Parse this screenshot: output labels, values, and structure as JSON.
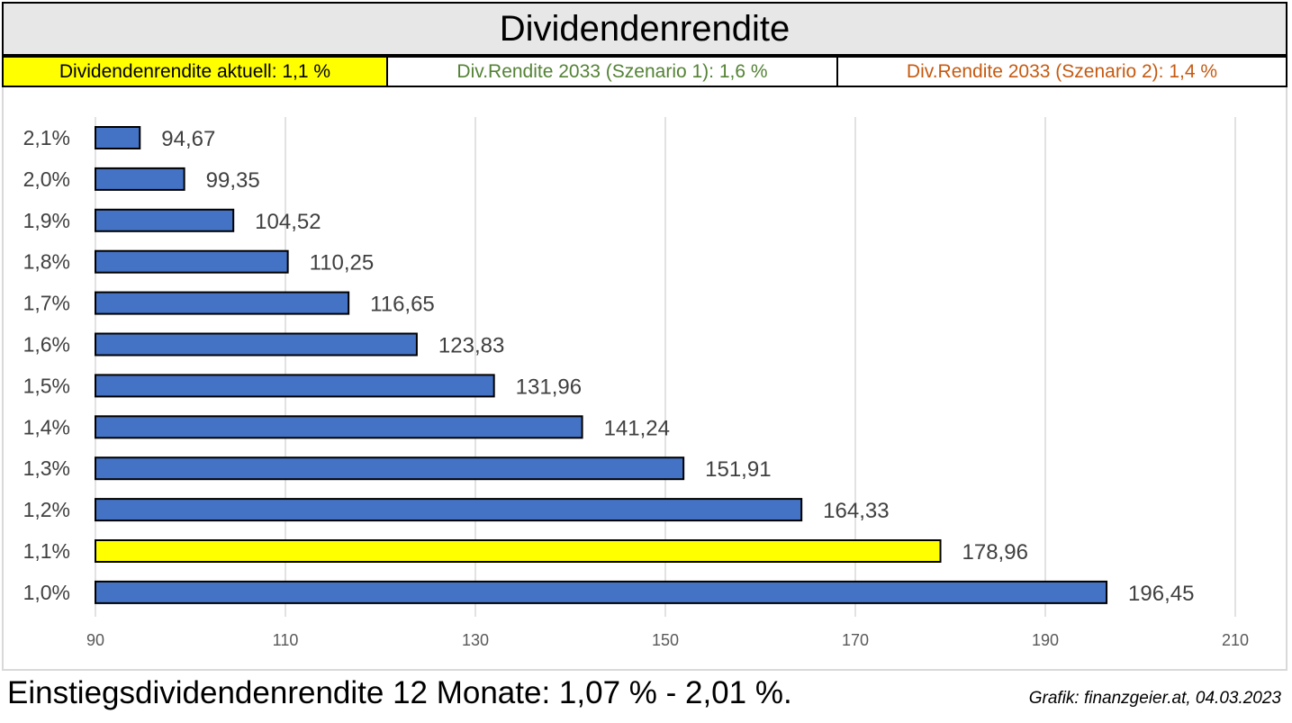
{
  "header": {
    "title": "Dividendenrendite",
    "current_label": "Dividendenrendite aktuell: 1,1 %",
    "scenario1_label": "Div.Rendite 2033 (Szenario 1): 1,6 %",
    "scenario2_label": "Div.Rendite 2033 (Szenario 2): 1,4 %"
  },
  "colors": {
    "bar": "#4472c4",
    "highlight": "#ffff00",
    "scenario1": "#548235",
    "scenario2": "#c55a11",
    "grid": "#d9d9d9"
  },
  "chart_data": {
    "type": "bar",
    "orientation": "horizontal",
    "title": "Dividendenrendite",
    "categories": [
      "2,1%",
      "2,0%",
      "1,9%",
      "1,8%",
      "1,7%",
      "1,6%",
      "1,5%",
      "1,4%",
      "1,3%",
      "1,2%",
      "1,1%",
      "1,0%"
    ],
    "values": [
      94.67,
      99.35,
      104.52,
      110.25,
      116.65,
      123.83,
      131.96,
      141.24,
      151.91,
      164.33,
      178.96,
      196.45
    ],
    "value_labels": [
      "94,67",
      "99,35",
      "104,52",
      "110,25",
      "116,65",
      "123,83",
      "131,96",
      "141,24",
      "151,91",
      "164,33",
      "178,96",
      "196,45"
    ],
    "highlight_category": "1,1%",
    "xlim": [
      90,
      210
    ],
    "xticks": [
      90,
      110,
      130,
      150,
      170,
      190,
      210
    ],
    "grid": true,
    "legend": "none"
  },
  "footer": {
    "note": "Einstiegsdividendenrendite 12 Monate: 1,07 % - 2,01 %.",
    "credit": "Grafik: finanzgeier.at, 04.03.2023"
  }
}
